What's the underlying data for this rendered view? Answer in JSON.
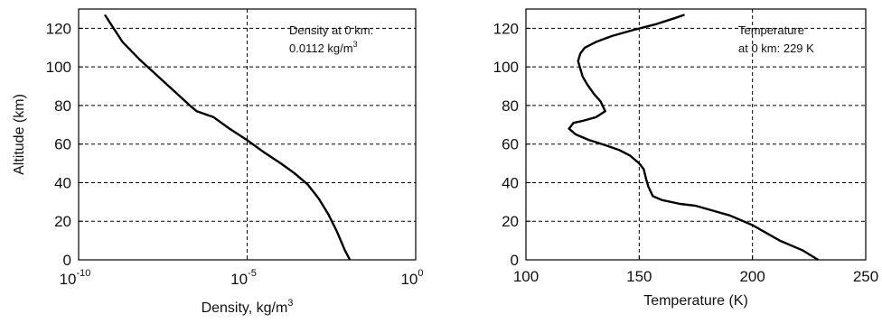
{
  "chart_data": [
    {
      "type": "line",
      "xlabel": "Density, kg/m",
      "xlabel_sup": "3",
      "ylabel": "Altitude (km)",
      "x_scale": "log",
      "xlim": [
        1e-10,
        1
      ],
      "ylim": [
        0,
        130
      ],
      "grid": true,
      "x_ticks": [
        {
          "base": "10",
          "exp": "-10",
          "value": 1e-10
        },
        {
          "base": "10",
          "exp": "-5",
          "value": 1e-05
        },
        {
          "base": "10",
          "exp": "0",
          "value": 1
        }
      ],
      "y_ticks": [
        "0",
        "20",
        "40",
        "60",
        "80",
        "100",
        "120"
      ],
      "annotation": {
        "line1": "Density at 0 km:",
        "line2": "0.0112 kg/m",
        "line2_sup": "3"
      },
      "series": [
        {
          "x": [
            0.0112,
            0.0079,
            0.0045,
            0.0025,
            0.0013,
            0.00063,
            0.00025,
            0.0001,
            3e-05,
            1e-05,
            3e-06,
            1e-06,
            3.2e-07,
            2e-07,
            6.3e-08,
            2e-08,
            6.3e-09,
            2e-09,
            6e-10
          ],
          "y": [
            0,
            5,
            15,
            24,
            32,
            39,
            45,
            50,
            56,
            62,
            68,
            74,
            77,
            80,
            88,
            96,
            104,
            113,
            127
          ]
        }
      ]
    },
    {
      "type": "line",
      "xlabel": "Temperature (K)",
      "ylabel": "",
      "xlim": [
        100,
        250
      ],
      "ylim": [
        0,
        130
      ],
      "grid": true,
      "x_ticks": [
        "100",
        "150",
        "200",
        "250"
      ],
      "y_ticks": [
        "0",
        "20",
        "40",
        "60",
        "80",
        "100",
        "120"
      ],
      "annotation": {
        "line1": "Temperature",
        "line2": "at 0 km:  229 K"
      },
      "series": [
        {
          "x": [
            229,
            222,
            212,
            200,
            190,
            181,
            175,
            168,
            160,
            156,
            154,
            153,
            152,
            150,
            146,
            141,
            136,
            131,
            128,
            122,
            119,
            121,
            125,
            131,
            135,
            133,
            130,
            127,
            125,
            124,
            123,
            124,
            126,
            131,
            138,
            147,
            157,
            165,
            170
          ],
          "y": [
            0,
            5,
            10,
            18,
            23,
            26,
            28,
            29,
            31,
            33,
            38,
            42,
            47,
            50,
            54,
            57,
            59,
            61,
            62,
            65,
            68,
            71,
            72,
            74,
            77,
            82,
            86,
            91,
            95,
            99,
            103,
            107,
            110,
            113,
            116,
            119,
            122,
            125,
            127
          ]
        }
      ]
    }
  ]
}
